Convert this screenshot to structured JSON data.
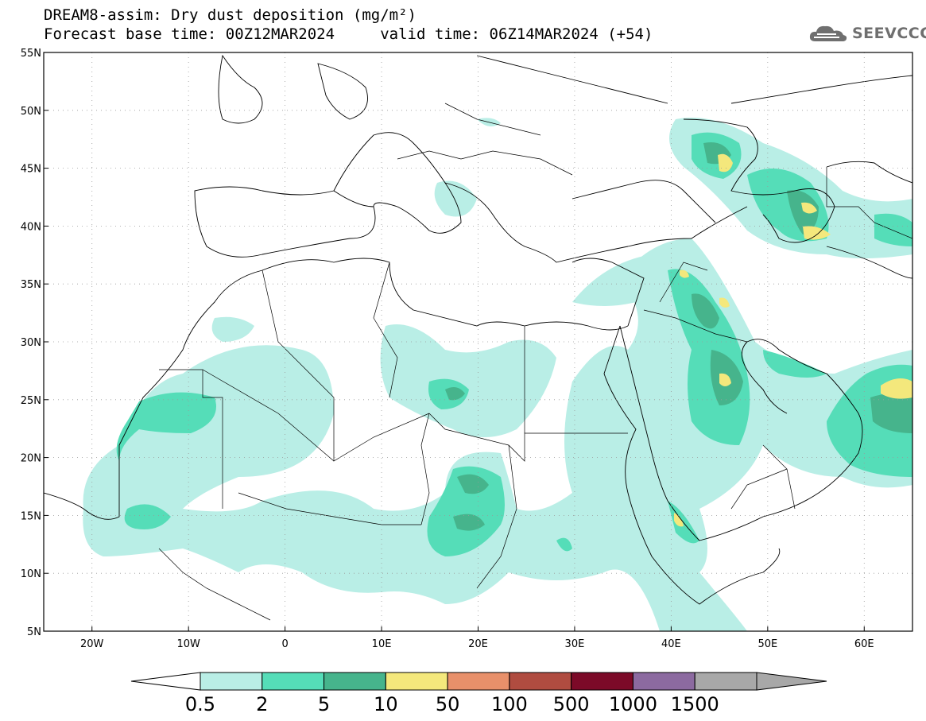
{
  "header": {
    "title_line1": "DREAM8-assim: Dry dust deposition (mg/m²)",
    "title_line2": "Forecast base time: 00Z12MAR2024     valid time: 06Z14MAR2024 (+54)",
    "logo_text": "SEEVCCC",
    "logo_icon": "cloud-icon"
  },
  "map": {
    "lon_range": [
      -25,
      65
    ],
    "lat_range": [
      5,
      55
    ],
    "lon_ticks": [
      {
        "value": -20,
        "label": "20W"
      },
      {
        "value": -10,
        "label": "10W"
      },
      {
        "value": 0,
        "label": "0"
      },
      {
        "value": 10,
        "label": "10E"
      },
      {
        "value": 20,
        "label": "20E"
      },
      {
        "value": 30,
        "label": "30E"
      },
      {
        "value": 40,
        "label": "40E"
      },
      {
        "value": 50,
        "label": "50E"
      },
      {
        "value": 60,
        "label": "60E"
      }
    ],
    "lat_ticks": [
      {
        "value": 55,
        "label": "55N"
      },
      {
        "value": 50,
        "label": "50N"
      },
      {
        "value": 45,
        "label": "45N"
      },
      {
        "value": 40,
        "label": "40N"
      },
      {
        "value": 35,
        "label": "35N"
      },
      {
        "value": 30,
        "label": "30N"
      },
      {
        "value": 25,
        "label": "25N"
      },
      {
        "value": 20,
        "label": "20N"
      },
      {
        "value": 15,
        "label": "15N"
      },
      {
        "value": 10,
        "label": "10N"
      },
      {
        "value": 5,
        "label": "5N"
      }
    ],
    "grid": "dotted"
  },
  "legend": {
    "colors": [
      "#b9eee6",
      "#55ddb8",
      "#46b48c",
      "#f4e87c",
      "#e8906a",
      "#b04c40",
      "#7c0a28",
      "#8c6aa0",
      "#a8a8a8"
    ],
    "labels": [
      "0.5",
      "2",
      "5",
      "10",
      "50",
      "100",
      "500",
      "1000",
      "1500"
    ]
  }
}
